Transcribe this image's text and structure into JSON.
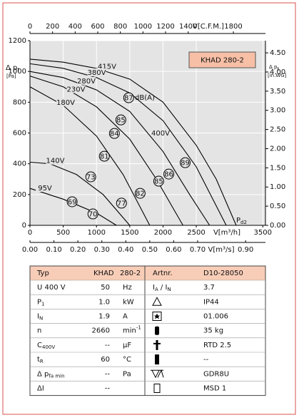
{
  "chart_data": {
    "type": "line",
    "title": "KHAD 280-2",
    "y_label": [
      "Δ p",
      {
        "sub": "t"
      }
    ],
    "y_unit": "[Pa]",
    "y2_label": [
      "Δ p",
      {
        "sub": "t"
      }
    ],
    "y2_unit": "[in.WG]",
    "x_label": "V[m³/h]",
    "x2_label": "V[C.F.M.]",
    "x3_label": "V[m³/s]",
    "xlim": [
      0,
      3540
    ],
    "xticks": [
      0,
      500,
      1000,
      1500,
      2000,
      2500,
      3500
    ],
    "ylim": [
      0,
      1200
    ],
    "yticks": [
      0,
      200,
      400,
      600,
      800,
      1000,
      1200
    ],
    "x2lim": [
      0,
      2084
    ],
    "x2ticks": [
      0,
      200,
      400,
      600,
      800,
      1000,
      1200,
      1400,
      1800
    ],
    "y2lim": [
      0,
      4.818
    ],
    "y2ticks": [
      {
        "value": 0,
        "label": "0.00"
      },
      {
        "value": 0.5,
        "label": "0.50"
      },
      {
        "value": 1,
        "label": "1.00"
      },
      {
        "value": 1.5,
        "label": "1.50"
      },
      {
        "value": 2,
        "label": "2.00"
      },
      {
        "value": 2.5,
        "label": "2.50"
      },
      {
        "value": 3,
        "label": "3.00"
      },
      {
        "value": 3.5,
        "label": "3.50"
      },
      {
        "value": 4,
        "label": "4.00"
      },
      {
        "value": 4.5,
        "label": "4.50"
      }
    ],
    "x3lim": [
      0,
      0.983
    ],
    "x3ticks": [
      {
        "value": 0,
        "label": "0.00"
      },
      {
        "value": 0.1,
        "label": "0.10"
      },
      {
        "value": 0.2,
        "label": "0.20"
      },
      {
        "value": 0.3,
        "label": "0.30"
      },
      {
        "value": 0.4,
        "label": "0.40"
      },
      {
        "value": 0.5,
        "label": "0.50"
      },
      {
        "value": 0.6,
        "label": "0.60"
      },
      {
        "value": 0.7,
        "label": "0.70"
      },
      {
        "value": 0.9,
        "label": "0.90"
      }
    ],
    "grid": true,
    "series": [
      {
        "name": "415V",
        "color": "#000000",
        "x": [
          0,
          500,
          1000,
          1500,
          2000,
          2500,
          2800,
          3100
        ],
        "values": [
          1080,
          1060,
          1020,
          950,
          800,
          520,
          300,
          0
        ]
      },
      {
        "name": "380V",
        "color": "#000000",
        "x": [
          0,
          500,
          1000,
          1500,
          2000,
          2500,
          2950
        ],
        "values": [
          1050,
          1020,
          960,
          860,
          680,
          380,
          0
        ]
      },
      {
        "name": "280V",
        "color": "#000000",
        "x": [
          0,
          500,
          1000,
          1500,
          2000,
          2400,
          2700
        ],
        "values": [
          1000,
          960,
          880,
          740,
          480,
          200,
          0
        ]
      },
      {
        "name": "230V",
        "color": "#000000",
        "x": [
          0,
          500,
          1000,
          1500,
          1900,
          2300
        ],
        "values": [
          970,
          900,
          770,
          560,
          300,
          0
        ]
      },
      {
        "name": "180V",
        "color": "#000000",
        "x": [
          0,
          500,
          1000,
          1400,
          1800
        ],
        "values": [
          900,
          780,
          580,
          330,
          0
        ]
      },
      {
        "name": "140V",
        "color": "#000000",
        "x": [
          0,
          300,
          700,
          1100,
          1500
        ],
        "values": [
          410,
          400,
          330,
          200,
          0
        ]
      },
      {
        "name": "95V",
        "color": "#000000",
        "x": [
          0,
          500,
          1000,
          1300
        ],
        "values": [
          240,
          170,
          80,
          0
        ]
      }
    ],
    "noise_points": [
      {
        "x": 1484,
        "y": 829,
        "label": "87"
      },
      {
        "x": 1366,
        "y": 685,
        "label": "85"
      },
      {
        "x": 1269,
        "y": 597,
        "label": "84"
      },
      {
        "x": 1118,
        "y": 449,
        "label": "81"
      },
      {
        "x": 914,
        "y": 315,
        "label": "73"
      },
      {
        "x": 634,
        "y": 153,
        "label": "69"
      },
      {
        "x": 946,
        "y": 74,
        "label": "70"
      },
      {
        "x": 1376,
        "y": 144,
        "label": "77"
      },
      {
        "x": 1656,
        "y": 208,
        "label": "82"
      },
      {
        "x": 1935,
        "y": 287,
        "label": "85"
      },
      {
        "x": 2086,
        "y": 333,
        "label": "86"
      },
      {
        "x": 2333,
        "y": 407,
        "label": "89"
      }
    ],
    "db_unit": "dB(A)",
    "curve_note": "400V",
    "pd2": [
      "P",
      {
        "sub": "d2"
      }
    ]
  },
  "table": {
    "header": [
      "Typ",
      "KHAD",
      "280-2",
      "Artnr.",
      "D10-28050"
    ],
    "rows": [
      {
        "label": "U   400   V",
        "value": "50",
        "unit": "Hz",
        "param": [
          "I",
          {
            "sub": "A"
          },
          " / I",
          {
            "sub": "N"
          }
        ],
        "spec": "3.7"
      },
      {
        "label": [
          "P",
          {
            "sub": "1"
          }
        ],
        "value": "1.0",
        "unit": "kW",
        "spec": "IP44"
      },
      {
        "label": [
          "I",
          {
            "sub": "N"
          }
        ],
        "value": "1.9",
        "unit": "A",
        "spec": "01.006"
      },
      {
        "label": "n",
        "value": "2660",
        "unit": [
          "min",
          {
            "sup": "-1"
          }
        ],
        "spec": "35 kg"
      },
      {
        "label": [
          "C",
          {
            "sub": "400V"
          }
        ],
        "value": "--",
        "unit": "µF",
        "spec": "RTD 2.5"
      },
      {
        "label": [
          "t",
          {
            "sub": "R"
          }
        ],
        "value": "60",
        "unit": "°C",
        "spec": "--"
      },
      {
        "label": [
          "Δ p",
          {
            "sub": "fa min"
          }
        ],
        "value": "--",
        "unit": "Pa",
        "spec": "GDR8U"
      },
      {
        "label": "ΔI",
        "value": "--",
        "spec": "MSD 1"
      }
    ]
  }
}
